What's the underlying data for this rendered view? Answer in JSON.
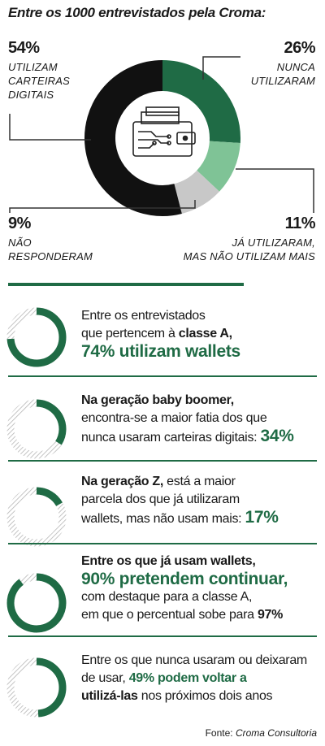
{
  "title": "Entre os 1000 entrevistados pela Croma:",
  "chart_data": {
    "type": "pie",
    "categories": [
      "Utilizam carteiras digitais",
      "Nunca utilizaram",
      "Já utilizaram, mas não utilizam mais",
      "Não responderam"
    ],
    "values": [
      54,
      26,
      11,
      9
    ],
    "unit": "%",
    "colors": [
      "#111111",
      "#1f6b45",
      "#7fc396",
      "#c8c8c8"
    ],
    "labels": [
      {
        "pct": "54%",
        "text": [
          "UTILIZAM",
          "CARTEIRAS",
          "DIGITAIS"
        ]
      },
      {
        "pct": "26%",
        "text": [
          "NUNCA",
          "UTILIZARAM"
        ]
      },
      {
        "pct": "11%",
        "text": [
          "JÁ UTILIZARAM,",
          "MAS NÃO UTILIZAM MAIS"
        ]
      },
      {
        "pct": "9%",
        "text": [
          "NÃO",
          "RESPONDERAM"
        ]
      }
    ],
    "center_icon": "wallet-icon"
  },
  "stats": [
    {
      "ring_value": 74,
      "line1": "Entre os entrevistados",
      "line2a": "que pertencem à ",
      "line2b": "classe A,",
      "line3": "74% utilizam wallets"
    },
    {
      "ring_value": 34,
      "line1": "Na geração baby boomer,",
      "line2": "encontra-se a maior fatia dos que",
      "line3a": "nunca usaram carteiras digitais: ",
      "line3b": "34%"
    },
    {
      "ring_value": 17,
      "line1a": "Na geração Z,",
      "line1b": " está a maior",
      "line2": "parcela dos que já utilizaram",
      "line3a": "wallets, mas não usam mais: ",
      "line3b": "17%"
    },
    {
      "ring_value": 90,
      "line1": "Entre os que já usam wallets,",
      "line2": "90% pretendem continuar,",
      "line3": "com destaque para a classe A,",
      "line4a": "em que o percentual sobe para ",
      "line4b": "97%"
    },
    {
      "ring_value": 49,
      "line1": "Entre os que nunca usaram ou deixaram",
      "line2": "de usar, ",
      "line2b": "49% podem voltar a",
      "line3a": "utilizá-las",
      "line3b": " nos próximos dois anos"
    }
  ],
  "source": {
    "prefix": "Fonte: ",
    "name": "Croma Consultoria"
  },
  "colors": {
    "accent": "#1f6b45",
    "hatch": "#b5b5b5"
  }
}
